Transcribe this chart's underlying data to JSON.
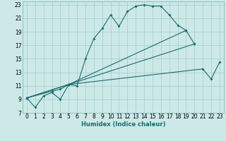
{
  "xlabel": "Humidex (Indice chaleur)",
  "bg_color": "#cce9e8",
  "grid_color": "#aad0cf",
  "line_color": "#1a6b6b",
  "xlim": [
    -0.5,
    23.5
  ],
  "ylim": [
    7,
    23.5
  ],
  "xticks": [
    0,
    1,
    2,
    3,
    4,
    5,
    6,
    7,
    8,
    9,
    10,
    11,
    12,
    13,
    14,
    15,
    16,
    17,
    18,
    19,
    20,
    21,
    22,
    23
  ],
  "yticks": [
    7,
    9,
    11,
    13,
    15,
    17,
    19,
    21,
    23
  ],
  "line1_x": [
    0,
    1,
    2,
    3,
    4,
    5,
    6,
    7,
    8,
    9,
    10,
    11,
    12,
    13,
    14,
    15,
    16,
    17,
    18,
    19
  ],
  "line1_y": [
    9.2,
    7.8,
    9.5,
    10.0,
    9.0,
    11.2,
    11.0,
    15.0,
    18.0,
    19.5,
    21.5,
    19.8,
    22.0,
    22.8,
    23.0,
    22.8,
    22.8,
    21.5,
    20.0,
    19.2
  ],
  "line2_x": [
    0,
    3,
    4,
    5,
    19,
    20
  ],
  "line2_y": [
    9.2,
    10.2,
    10.5,
    11.2,
    19.2,
    17.2
  ],
  "line3_x": [
    0,
    5,
    21,
    22,
    23
  ],
  "line3_y": [
    9.2,
    11.2,
    13.5,
    12.0,
    14.5
  ],
  "line4_x": [
    0,
    5,
    20
  ],
  "line4_y": [
    9.2,
    11.2,
    17.2
  ],
  "lw": 0.8,
  "ms": 2.0,
  "tick_fontsize": 5.5,
  "xlabel_fontsize": 6.0
}
